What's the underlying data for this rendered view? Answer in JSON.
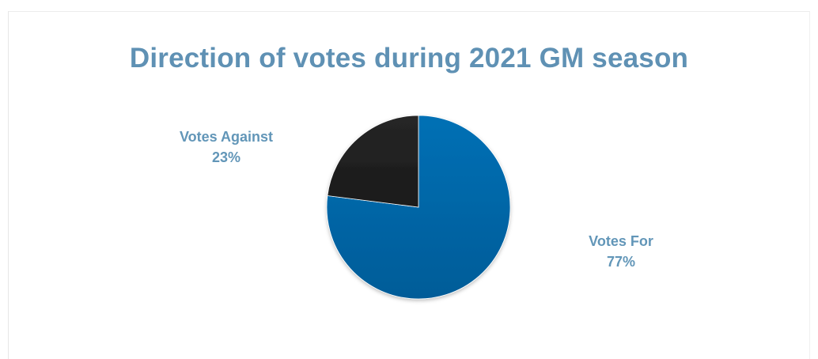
{
  "chart_data": {
    "type": "pie",
    "title": "Direction of votes during 2021 GM season",
    "start_angle_deg": 0,
    "direction": "clockwise",
    "slices": [
      {
        "label": "Votes For",
        "value": 77,
        "display": "77%",
        "color": "#0270b5",
        "color_dark": "#015c98"
      },
      {
        "label": "Votes Against",
        "value": 23,
        "display": "23%",
        "color": "#262626",
        "color_dark": "#1a1a1a"
      }
    ],
    "label_color": "#6296b8",
    "title_color": "#5f91b4"
  }
}
